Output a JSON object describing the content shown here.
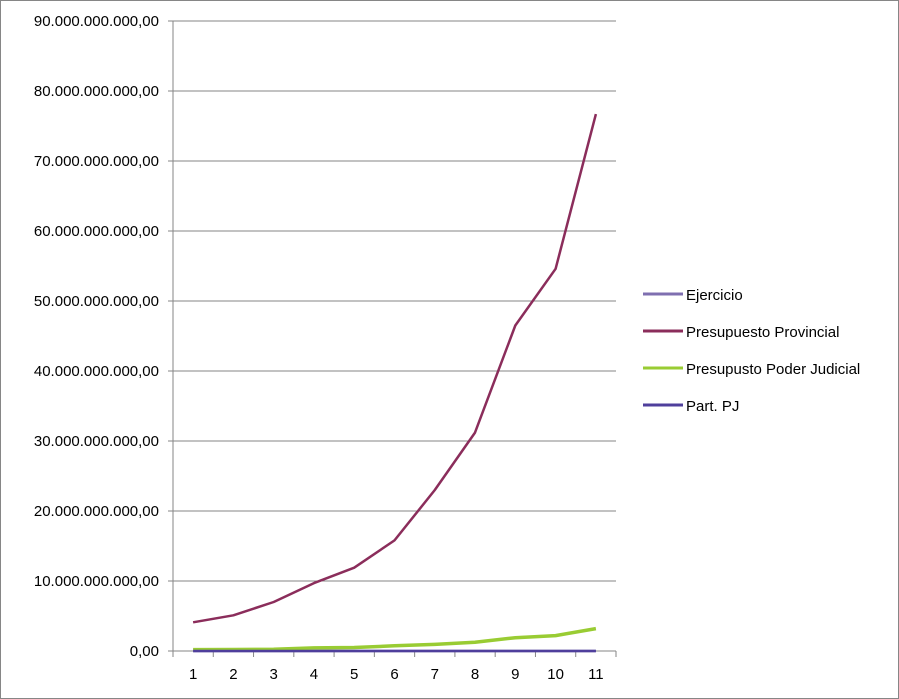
{
  "chart_data": {
    "type": "line",
    "categories": [
      "1",
      "2",
      "3",
      "4",
      "5",
      "6",
      "7",
      "8",
      "9",
      "10",
      "11"
    ],
    "ylim": [
      0,
      90000000000
    ],
    "y_ticks": [
      {
        "value": 0,
        "label": "0,00"
      },
      {
        "value": 10000000000,
        "label": "10.000.000.000,00"
      },
      {
        "value": 20000000000,
        "label": "20.000.000.000,00"
      },
      {
        "value": 30000000000,
        "label": "30.000.000.000,00"
      },
      {
        "value": 40000000000,
        "label": "40.000.000.000,00"
      },
      {
        "value": 50000000000,
        "label": "50.000.000.000,00"
      },
      {
        "value": 60000000000,
        "label": "60.000.000.000,00"
      },
      {
        "value": 70000000000,
        "label": "70.000.000.000,00"
      },
      {
        "value": 80000000000,
        "label": "80.000.000.000,00"
      },
      {
        "value": 90000000000,
        "label": "90.000.000.000,00"
      }
    ],
    "grid": true,
    "legend_position": "right",
    "series": [
      {
        "name": "Ejercicio",
        "color": "#7f6fb0",
        "values": [
          1999,
          2000,
          2001,
          2002,
          2003,
          2004,
          2005,
          2006,
          2007,
          2008,
          2009
        ]
      },
      {
        "name": "Presupuesto Provincial",
        "color": "#8b2d5b",
        "values": [
          4100000000,
          5100000000,
          7000000000,
          9700000000,
          11900000000,
          15800000000,
          23000000000,
          31200000000,
          46500000000,
          54600000000,
          76700000000
        ]
      },
      {
        "name": "Presupusto Poder Judicial",
        "color": "#99cc33",
        "values": [
          200000000,
          220000000,
          260000000,
          450000000,
          500000000,
          750000000,
          950000000,
          1250000000,
          1900000000,
          2200000000,
          3200000000
        ]
      },
      {
        "name": "Part. PJ",
        "color": "#4f3f9c",
        "values": [
          0.05,
          0.05,
          0.04,
          0.05,
          0.04,
          0.05,
          0.04,
          0.04,
          0.04,
          0.04,
          0.04
        ]
      }
    ]
  }
}
